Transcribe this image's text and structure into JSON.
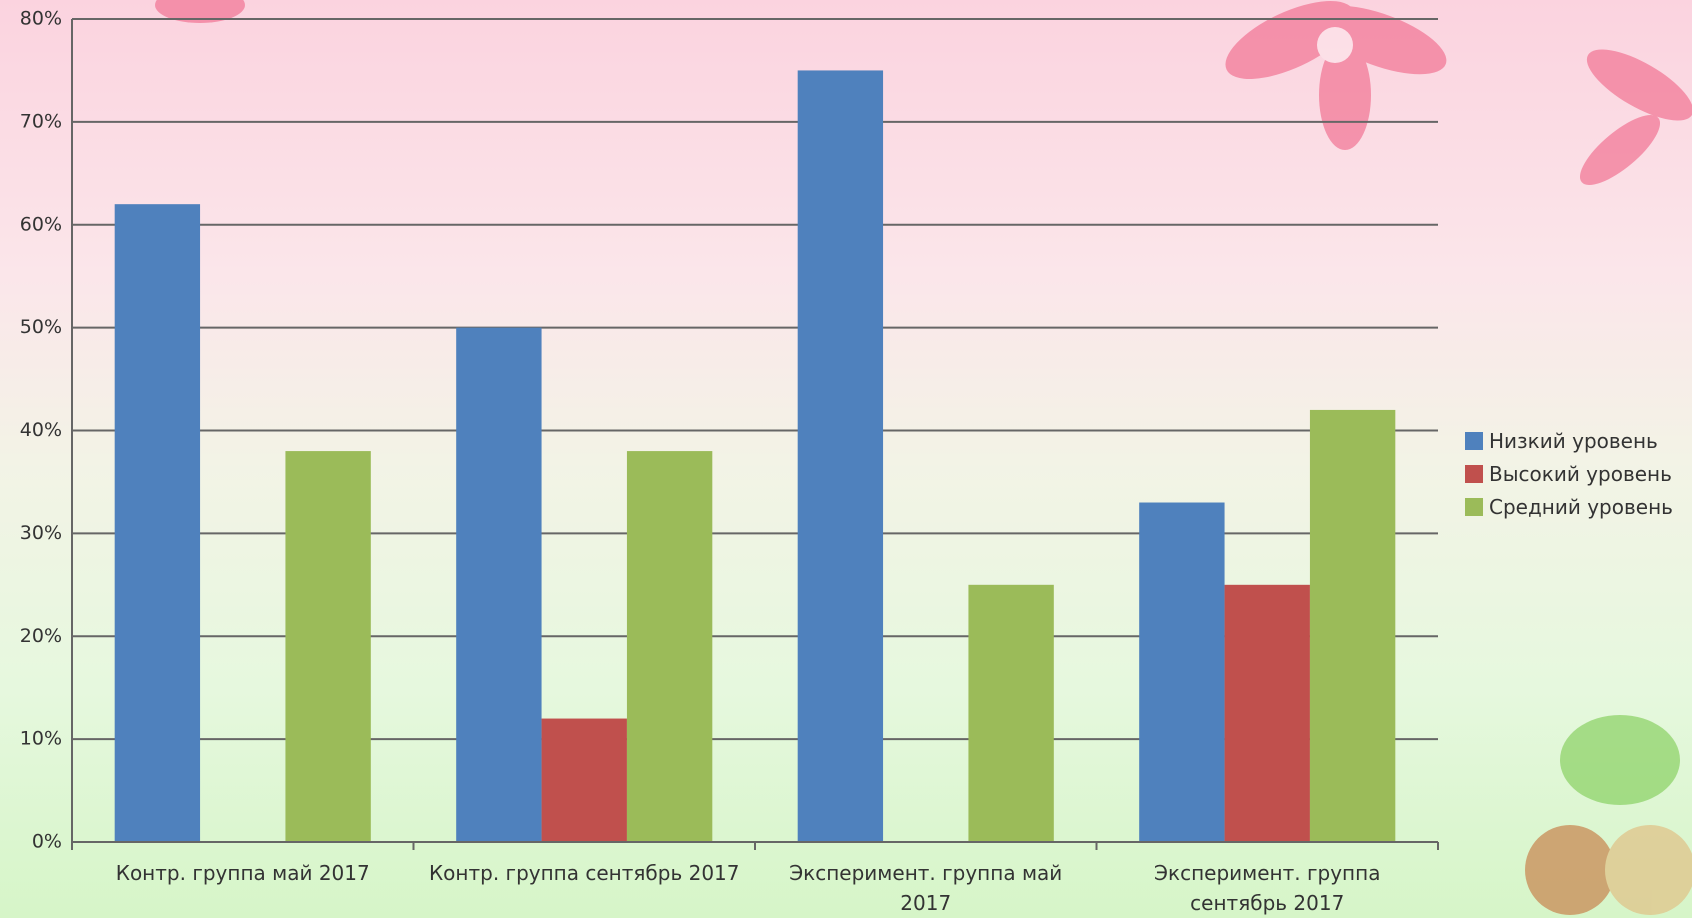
{
  "chart_data": {
    "type": "bar",
    "categories": [
      "Контр. группа май 2017",
      "Контр. группа сентябрь 2017",
      "Эксперимент. группа май 2017",
      "Эксперимент. группа сентябрь 2017"
    ],
    "series": [
      {
        "name": "Низкий уровень",
        "color": "#4f81bd",
        "values": [
          62,
          50,
          75,
          33
        ]
      },
      {
        "name": "Высокий уровень",
        "color": "#c0504d",
        "values": [
          0,
          12,
          0,
          25
        ]
      },
      {
        "name": "Средний уровень",
        "color": "#9bbb59",
        "values": [
          38,
          38,
          25,
          42
        ]
      }
    ],
    "ylim": [
      0,
      80
    ],
    "yticks": [
      {
        "value": 0,
        "label": "0%"
      },
      {
        "value": 10,
        "label": "10%"
      },
      {
        "value": 20,
        "label": "20%"
      },
      {
        "value": 30,
        "label": "30%"
      },
      {
        "value": 40,
        "label": "40%"
      },
      {
        "value": 50,
        "label": "50%"
      },
      {
        "value": 60,
        "label": "60%"
      },
      {
        "value": 70,
        "label": "70%"
      },
      {
        "value": 80,
        "label": "80%"
      }
    ],
    "grid": true,
    "legend": "right"
  }
}
